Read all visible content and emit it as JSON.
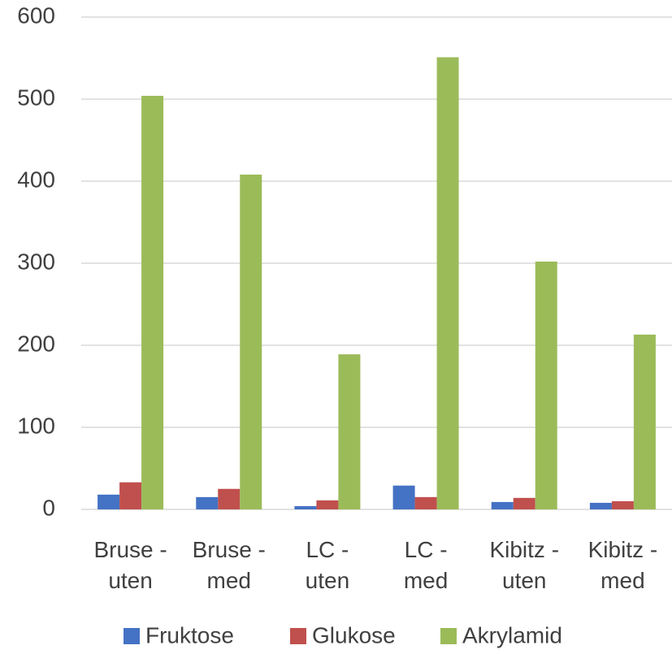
{
  "chart_data": {
    "type": "bar",
    "categories": [
      "Bruse - uten",
      "Bruse - med",
      "LC - uten",
      "LC - med",
      "Kibitz - uten",
      "Kibitz - med"
    ],
    "series": [
      {
        "name": "Fruktose",
        "color": "#4472c4",
        "values": [
          18,
          15,
          4,
          29,
          9,
          8
        ]
      },
      {
        "name": "Glukose",
        "color": "#c0504d",
        "values": [
          33,
          25,
          11,
          15,
          14,
          10
        ]
      },
      {
        "name": "Akrylamid",
        "color": "#9bbb59",
        "values": [
          504,
          408,
          189,
          551,
          302,
          213
        ]
      }
    ],
    "ylim": [
      0,
      600
    ],
    "yticks": [
      0,
      100,
      200,
      300,
      400,
      500,
      600
    ],
    "grid": true,
    "legend": "bottom"
  }
}
